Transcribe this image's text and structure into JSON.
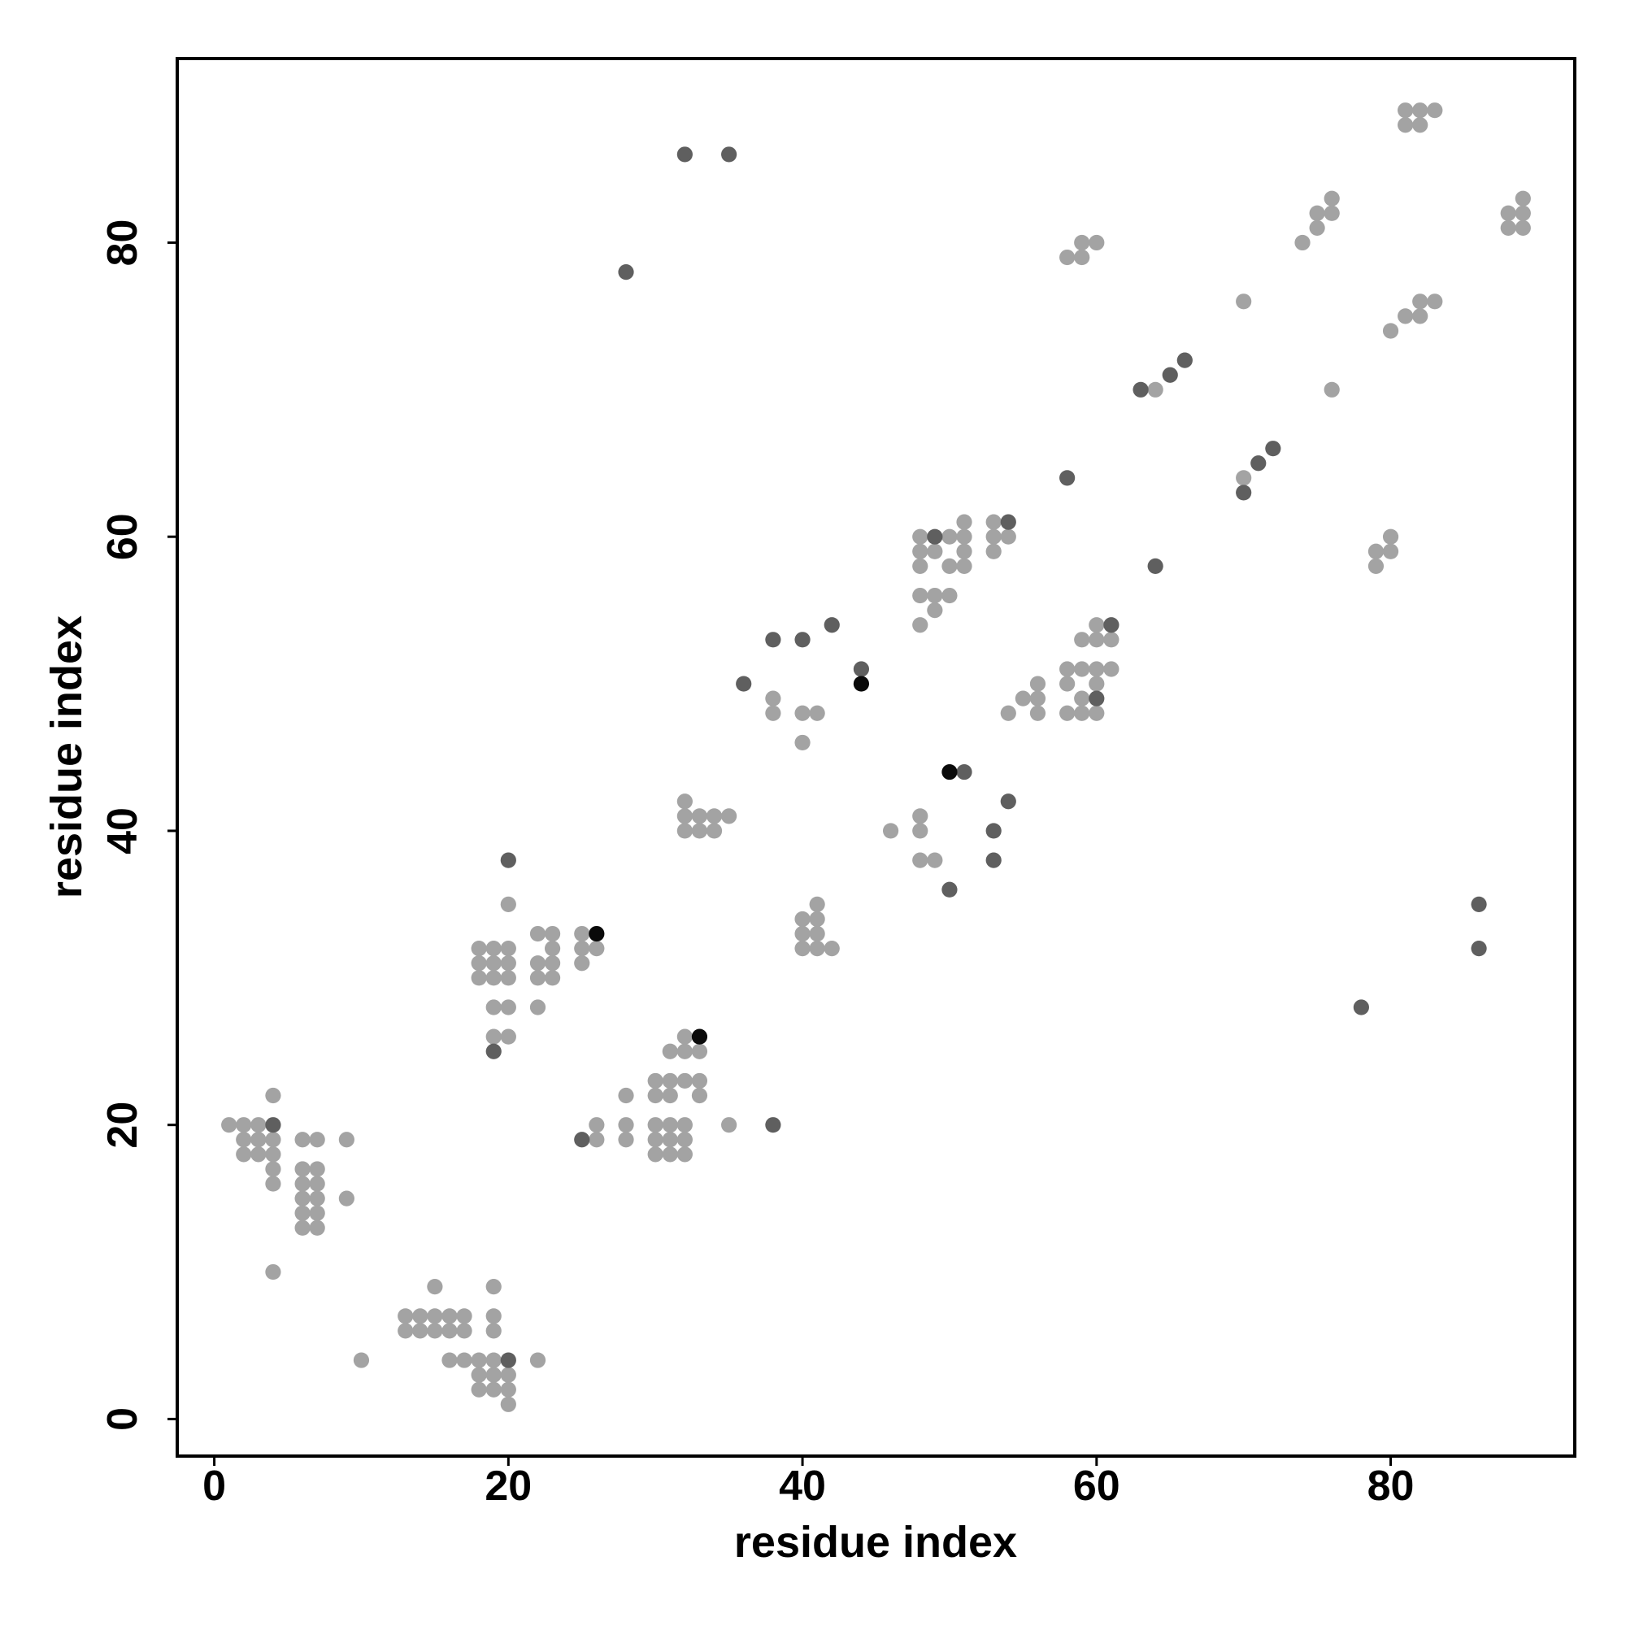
{
  "chart_data": {
    "type": "scatter",
    "xlabel": "residue index",
    "ylabel": "residue index",
    "xlim": [
      -2.52,
      92.52
    ],
    "ylim": [
      -2.52,
      92.52
    ],
    "xticks": [
      0,
      20,
      40,
      60,
      80
    ],
    "yticks": [
      0,
      20,
      40,
      60,
      80
    ],
    "series": [
      {
        "color": "#a3a3a3",
        "x": [
          1,
          2,
          3,
          2,
          3,
          4,
          2,
          3,
          4,
          4,
          4,
          4,
          4,
          6,
          7,
          6,
          7,
          6,
          7,
          6,
          7,
          6,
          7,
          6,
          7,
          9,
          9,
          10,
          13,
          14,
          15,
          16,
          17,
          13,
          14,
          15,
          16,
          17,
          15,
          16,
          17,
          18,
          19,
          18,
          19,
          20,
          18,
          19,
          20,
          20,
          19,
          19,
          19,
          22,
          18,
          19,
          20,
          18,
          19,
          20,
          18,
          19,
          20,
          19,
          20,
          19,
          20,
          20,
          22,
          23,
          23,
          22,
          23,
          22,
          23,
          22,
          25,
          25,
          26,
          25,
          26,
          26,
          28,
          28,
          28,
          30,
          31,
          32,
          33,
          30,
          31,
          33,
          30,
          31,
          32,
          30,
          31,
          32,
          30,
          31,
          32,
          31,
          32,
          33,
          32,
          35,
          32,
          32,
          33,
          34,
          35,
          32,
          33,
          34,
          38,
          38,
          40,
          41,
          40,
          40,
          41,
          41,
          40,
          41,
          40,
          41,
          42,
          46,
          48,
          48,
          48,
          49,
          48,
          48,
          48,
          49,
          50,
          51,
          51,
          51,
          50,
          51,
          48,
          49,
          50,
          49,
          48,
          53,
          53,
          54,
          53,
          54,
          55,
          56,
          56,
          56,
          58,
          59,
          60,
          61,
          58,
          59,
          60,
          61,
          60,
          59,
          58,
          59,
          60,
          60,
          58,
          59,
          59,
          60,
          64,
          70,
          70,
          74,
          75,
          75,
          76,
          76,
          76,
          81,
          82,
          83,
          81,
          82,
          80,
          81,
          82,
          82,
          83,
          79,
          79,
          80,
          80,
          88,
          88,
          89,
          89,
          89
        ],
        "y": [
          20,
          20,
          20,
          19,
          19,
          19,
          18,
          18,
          18,
          22,
          17,
          16,
          10,
          19,
          19,
          17,
          17,
          16,
          16,
          15,
          15,
          14,
          14,
          13,
          13,
          19,
          15,
          4,
          7,
          7,
          7,
          7,
          7,
          6,
          6,
          6,
          6,
          6,
          9,
          4,
          4,
          4,
          4,
          3,
          3,
          3,
          2,
          2,
          2,
          1,
          9,
          7,
          6,
          4,
          32,
          32,
          32,
          31,
          31,
          31,
          30,
          30,
          30,
          28,
          28,
          26,
          26,
          35,
          33,
          33,
          32,
          31,
          31,
          30,
          30,
          28,
          33,
          32,
          32,
          31,
          20,
          19,
          22,
          20,
          19,
          23,
          23,
          23,
          23,
          22,
          22,
          22,
          20,
          20,
          20,
          19,
          19,
          19,
          18,
          18,
          18,
          25,
          25,
          25,
          26,
          20,
          42,
          41,
          41,
          41,
          41,
          40,
          40,
          40,
          49,
          48,
          48,
          48,
          46,
          34,
          34,
          35,
          33,
          33,
          32,
          32,
          32,
          40,
          41,
          40,
          38,
          38,
          60,
          59,
          58,
          59,
          60,
          61,
          60,
          59,
          58,
          58,
          56,
          56,
          56,
          55,
          54,
          61,
          60,
          60,
          59,
          48,
          49,
          49,
          50,
          48,
          51,
          51,
          51,
          51,
          50,
          53,
          53,
          53,
          54,
          49,
          48,
          48,
          48,
          50,
          79,
          79,
          80,
          80,
          70,
          76,
          64,
          80,
          81,
          82,
          82,
          83,
          70,
          89,
          89,
          89,
          88,
          88,
          74,
          75,
          75,
          76,
          76,
          59,
          58,
          60,
          59,
          82,
          81,
          83,
          82,
          81
        ]
      },
      {
        "color": "#5f5f5f",
        "x": [
          4,
          20,
          19,
          20,
          25,
          38,
          28,
          32,
          35,
          36,
          38,
          40,
          42,
          44,
          51,
          50,
          53,
          53,
          54,
          49,
          54,
          61,
          60,
          58,
          64,
          63,
          65,
          66,
          70,
          71,
          72,
          78,
          86,
          86
        ],
        "y": [
          20,
          4,
          25,
          38,
          19,
          20,
          78,
          86,
          86,
          50,
          53,
          53,
          54,
          51,
          44,
          36,
          40,
          38,
          42,
          60,
          61,
          54,
          49,
          64,
          58,
          70,
          71,
          72,
          63,
          65,
          66,
          28,
          35,
          32
        ]
      },
      {
        "color": "#0a0a0a",
        "x": [
          26,
          33,
          44,
          50
        ],
        "y": [
          33,
          26,
          50,
          44
        ]
      }
    ]
  }
}
